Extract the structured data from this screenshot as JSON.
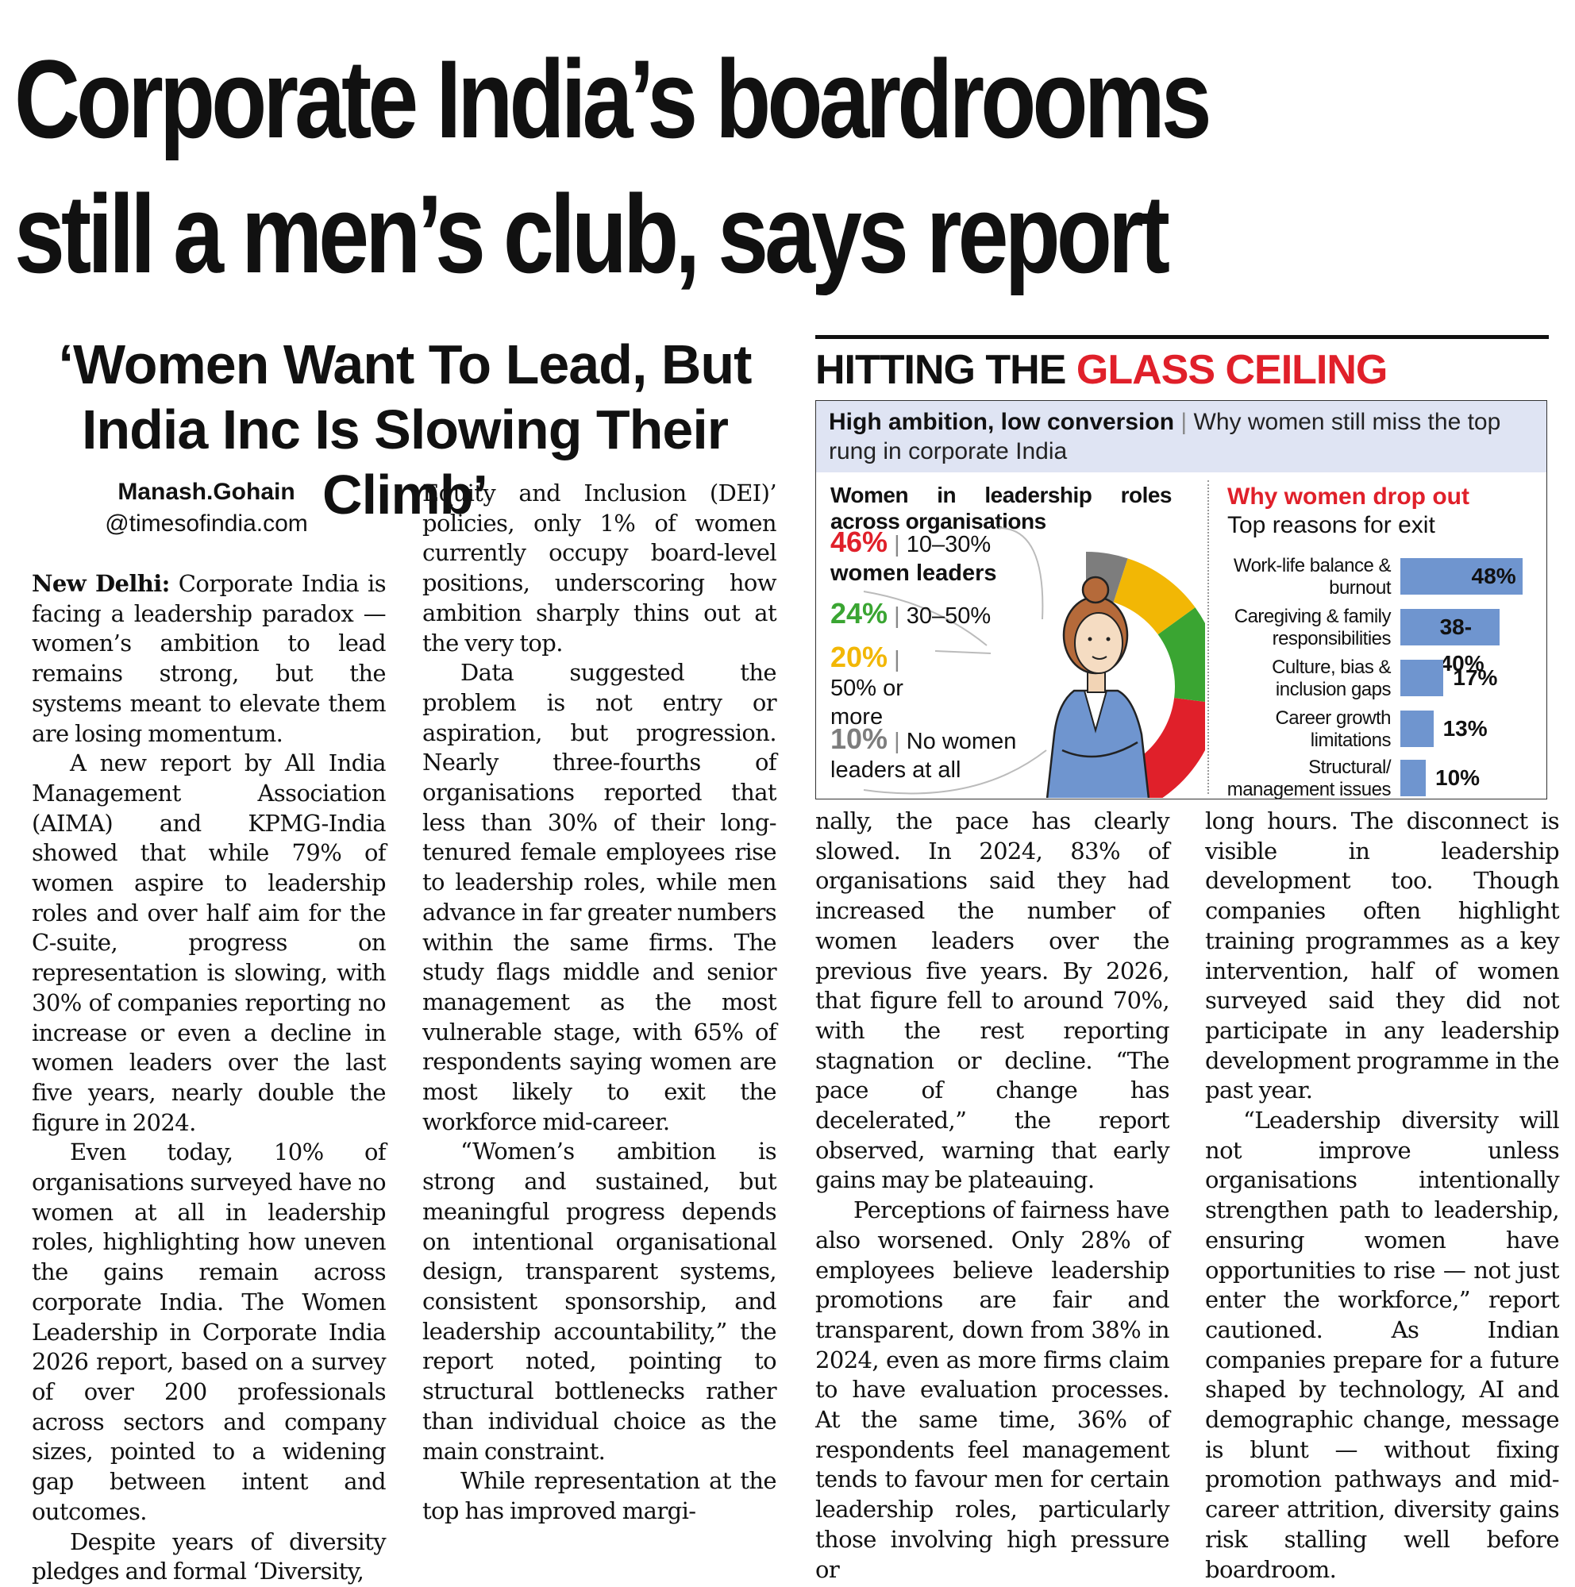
{
  "headline": {
    "line1": "Corporate India’s boardrooms",
    "line2": "still a men’s club, says report"
  },
  "subhead": "‘Women Want To Lead, But India Inc Is Slowing Their Climb’",
  "byline": {
    "name": "Manash.Gohain",
    "handle": "@timesofindia.com"
  },
  "body": {
    "col1": {
      "dateline": "New Delhi:",
      "p1": "Corporate India is facing a leadership paradox — women’s ambition to lead remains strong, but the systems meant to elevate them are losing momentum.",
      "p2": "A new report by All India Management Association (AIMA) and KPMG-India showed that while 79% of women aspire to leadership roles and over half aim for the C-suite, progress on representation is slowing, with 30% of companies reporting no increase or even a decline in women leaders over the last five years, nearly double the figure in 2024.",
      "p3": "Even today, 10% of organisations surveyed have no women at all in leadership roles, highlighting how uneven the gains remain across corporate India. The Women Leadership in Corporate India 2026 report, based on a survey of over 200 professionals across sectors and company sizes, pointed to a widening gap between intent and outcomes.",
      "p4": "Despite years of diversity pledges and formal ‘Diversity,"
    },
    "col2": {
      "p1": "Equity and Inclusion (DEI)’ policies, only 1% of women currently occupy board-level positions, underscoring how ambition sharply thins out at the very top.",
      "p2": "Data suggested the problem is not entry or aspiration, but progression. Nearly three-fourths of organisations reported that less than 30% of their long-tenured female employees rise to leadership roles, while men advance in far greater numbers within the same firms. The study flags middle and senior management as the most vulnerable stage, with 65% of respondents saying women are most likely to exit the workforce mid-career.",
      "p3": "“Women’s ambition is strong and sustained, but meaningful progress depends on intentional organisational design, transparent systems, consistent sponsorship, and leadership accountability,” the report noted, pointing to structural bottlenecks rather than individual choice as the main constraint.",
      "p4": "While representation at the top has improved margi-"
    },
    "col3": {
      "p1": "nally, the pace has clearly slowed. In 2024, 83% of organisations said they had increased the number of women leaders over the previous five years. By 2026, that figure fell to around 70%, with the rest reporting stagnation or decline. “The pace of change has decelerated,” the report observed, warning that early gains may be plateauing.",
      "p2": "Perceptions of fairness have also worsened. Only 28% of employees believe leadership promotions are fair and transparent, down from 38% in 2024, even as more firms claim to have evaluation processes. At the same time, 36% of respondents feel management tends to favour men for certain leadership roles, particularly those involving high pressure or"
    },
    "col4": {
      "p1": "long hours. The disconnect is visible in leadership development too. Though companies often highlight training programmes as a key intervention, half of women surveyed said they did not participate in any leadership development programme in the past year.",
      "p2": "“Leadership diversity will not improve unless organisations intentionally strengthen path to leadership, ensuring women have opportunities to rise — not just enter the workforce,” report cautioned. As Indian companies prepare for a future shaped by technology, AI and demographic change, message is blunt — without fixing promotion pathways and mid-career attrition, diversity gains risk stalling well before boardroom."
    }
  },
  "infographic": {
    "title_black": "HITTING THE",
    "title_red": "GLASS CEILING",
    "band_bold": "High ambition, low conversion",
    "band_sep": "|",
    "band_rest": "Why women still miss the top rung in corporate India",
    "left_title": "Women in leadership roles across organisations",
    "right_title": "Why women drop out",
    "right_subtitle": "Top reasons for exit",
    "colors": {
      "red": "#e0202a",
      "green": "#3aa532",
      "yellow": "#f2b705",
      "grey": "#7d7d7d",
      "bar": "#6f95cf",
      "band": "#dfe4f3"
    }
  },
  "chart_data": [
    {
      "type": "pie",
      "title": "Women in leadership roles across organisations",
      "slices": [
        {
          "label": "10–30% women leaders",
          "pct_text": "46%",
          "value": 46,
          "color": "#e0202a"
        },
        {
          "label": "30–50%",
          "pct_text": "24%",
          "value": 24,
          "color": "#3aa532"
        },
        {
          "label": "50% or more",
          "pct_text": "20%",
          "value": 20,
          "color": "#f2b705"
        },
        {
          "label": "No women leaders at all",
          "pct_text": "10%",
          "value": 10,
          "color": "#7d7d7d"
        }
      ]
    },
    {
      "type": "bar",
      "title": "Why women drop out",
      "subtitle": "Top reasons for exit",
      "categories": [
        "Work-life balance & burnout",
        "Caregiving & family responsibilities",
        "Culture, bias & inclusion gaps",
        "Career growth limitations",
        "Structural/ management issues"
      ],
      "values": [
        48,
        39,
        17,
        13,
        10
      ],
      "value_labels": [
        "48%",
        "38-40%",
        "17%",
        "13%",
        "10%"
      ],
      "color": "#6f95cf"
    }
  ]
}
